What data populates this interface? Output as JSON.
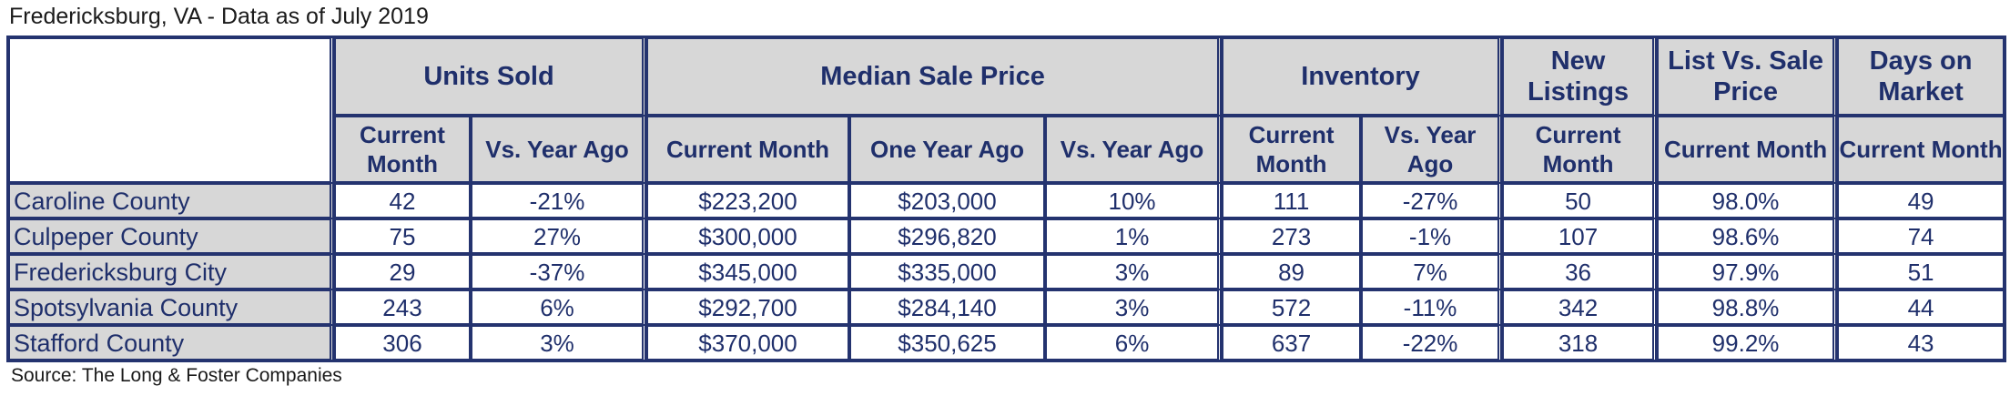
{
  "title": "Fredericksburg, VA - Data as of July 2019",
  "source": "Source: The Long & Foster Companies",
  "groups": {
    "units_sold": "Units Sold",
    "median_sale_price": "Median Sale Price",
    "inventory": "Inventory",
    "new_listings": "New Listings",
    "list_vs_sale": "List Vs. Sale Price",
    "days_on_market": "Days on Market"
  },
  "subheaders": {
    "units_current": "Current Month",
    "units_vs": "Vs. Year Ago",
    "price_current": "Current Month",
    "price_one_year": "One Year Ago",
    "price_vs": "Vs. Year Ago",
    "inv_current": "Current Month",
    "inv_vs": "Vs. Year Ago",
    "new_current": "Current Month",
    "list_current": "Current Month",
    "days_current": "Current Month"
  },
  "rows": [
    {
      "name": "Caroline County",
      "units": "42",
      "units_vs": "-21%",
      "price": "$223,200",
      "price_prev": "$203,000",
      "price_vs": "10%",
      "inv": "111",
      "inv_vs": "-27%",
      "new": "50",
      "list_sale": "98.0%",
      "days": "49"
    },
    {
      "name": "Culpeper County",
      "units": "75",
      "units_vs": "27%",
      "price": "$300,000",
      "price_prev": "$296,820",
      "price_vs": "1%",
      "inv": "273",
      "inv_vs": "-1%",
      "new": "107",
      "list_sale": "98.6%",
      "days": "74"
    },
    {
      "name": "Fredericksburg City",
      "units": "29",
      "units_vs": "-37%",
      "price": "$345,000",
      "price_prev": "$335,000",
      "price_vs": "3%",
      "inv": "89",
      "inv_vs": "7%",
      "new": "36",
      "list_sale": "97.9%",
      "days": "51"
    },
    {
      "name": "Spotsylvania County",
      "units": "243",
      "units_vs": "6%",
      "price": "$292,700",
      "price_prev": "$284,140",
      "price_vs": "3%",
      "inv": "572",
      "inv_vs": "-11%",
      "new": "342",
      "list_sale": "98.8%",
      "days": "44"
    },
    {
      "name": "Stafford County",
      "units": "306",
      "units_vs": "3%",
      "price": "$370,000",
      "price_prev": "$350,625",
      "price_vs": "6%",
      "inv": "637",
      "inv_vs": "-22%",
      "new": "318",
      "list_sale": "99.2%",
      "days": "43"
    }
  ]
}
